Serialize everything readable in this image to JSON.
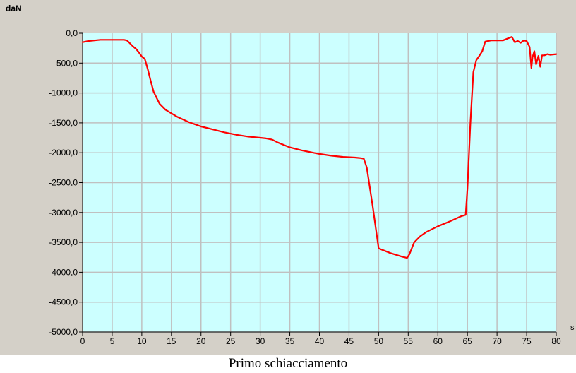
{
  "caption": "Primo schiacciamento",
  "chart_data": {
    "type": "line",
    "title": "",
    "xlabel": "s",
    "ylabel": "daN",
    "xlim": [
      0,
      80
    ],
    "ylim": [
      -5000,
      0
    ],
    "x_ticks": [
      0,
      5,
      10,
      15,
      20,
      25,
      30,
      35,
      40,
      45,
      50,
      55,
      60,
      65,
      70,
      75,
      80
    ],
    "x_tick_labels": [
      "0",
      "5",
      "10",
      "15",
      "20",
      "25",
      "30",
      "35",
      "40",
      "45",
      "50",
      "55",
      "60",
      "65",
      "70",
      "75",
      "80"
    ],
    "y_ticks": [
      0,
      -500,
      -1000,
      -1500,
      -2000,
      -2500,
      -3000,
      -3500,
      -4000,
      -4500,
      -5000
    ],
    "y_tick_labels": [
      "0,0",
      "-500,0",
      "-1000,0",
      "-1500,0",
      "-2000,0",
      "-2500,0",
      "-3000,0",
      "-3500,0",
      "-4000,0",
      "-4500,0",
      "-5000,0"
    ],
    "grid": true,
    "colors": {
      "plot_background": "#ccffff",
      "line": "#ff0000",
      "grid": "#c0c0c0",
      "panel": "#d4d0c8"
    },
    "series": [
      {
        "x": [
          0,
          1,
          2,
          3,
          4,
          5,
          6,
          7,
          7.5,
          8,
          8.5,
          9,
          9.5,
          10,
          10.5,
          11,
          11.5,
          12,
          12.5,
          13,
          14,
          15,
          16,
          18,
          20,
          22,
          24,
          26,
          28,
          30,
          31,
          32,
          33,
          35,
          37,
          40,
          42,
          44,
          46,
          47,
          47.5,
          48,
          49,
          50,
          50.5,
          52,
          54,
          54.8,
          55.2,
          55.6,
          56,
          57,
          58,
          60,
          62,
          64,
          64.7,
          65,
          65.5,
          66,
          66.5,
          67,
          67.5,
          68,
          69,
          70,
          71,
          72,
          72.5,
          73,
          73.5,
          74,
          74.5,
          75,
          75.5,
          75.8,
          76,
          76.3,
          76.6,
          77,
          77.3,
          77.6,
          78,
          78.5,
          79,
          80
        ],
        "y": [
          -150,
          -130,
          -120,
          -110,
          -110,
          -110,
          -110,
          -110,
          -120,
          -170,
          -220,
          -260,
          -320,
          -390,
          -430,
          -600,
          -800,
          -980,
          -1080,
          -1180,
          -1280,
          -1340,
          -1400,
          -1490,
          -1560,
          -1610,
          -1660,
          -1700,
          -1730,
          -1750,
          -1760,
          -1780,
          -1830,
          -1910,
          -1960,
          -2020,
          -2050,
          -2070,
          -2080,
          -2090,
          -2100,
          -2250,
          -2900,
          -3600,
          -3620,
          -3680,
          -3740,
          -3760,
          -3700,
          -3600,
          -3500,
          -3400,
          -3330,
          -3230,
          -3150,
          -3060,
          -3040,
          -2600,
          -1500,
          -650,
          -450,
          -380,
          -300,
          -140,
          -120,
          -120,
          -120,
          -80,
          -60,
          -150,
          -130,
          -160,
          -120,
          -130,
          -230,
          -580,
          -400,
          -300,
          -520,
          -380,
          -560,
          -370,
          -370,
          -350,
          -360,
          -350
        ]
      }
    ]
  }
}
